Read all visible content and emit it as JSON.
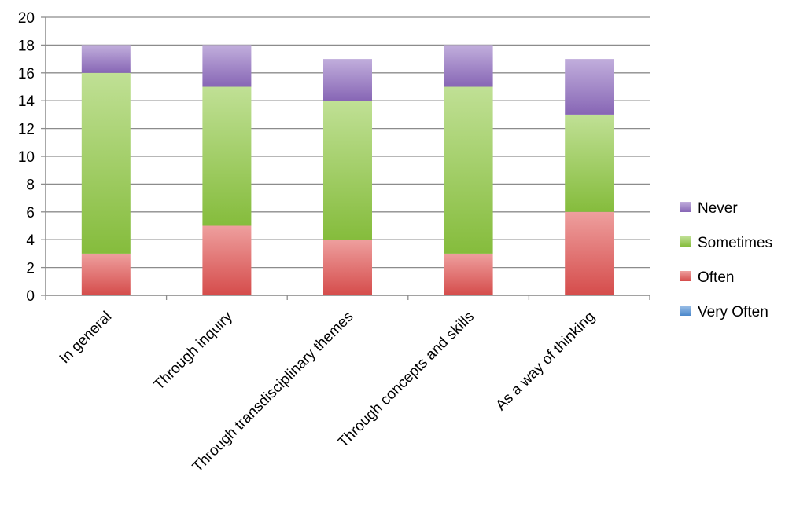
{
  "chart_data": {
    "type": "bar",
    "stacked": true,
    "categories": [
      "In general",
      "Through inquiry",
      "Through transdisciplinary themes",
      "Through concepts and skills",
      "As a way of thinking"
    ],
    "series": [
      {
        "name": "Very Often",
        "values": [
          0,
          0,
          0,
          0,
          0
        ],
        "color": "#4f8fd6"
      },
      {
        "name": "Often",
        "values": [
          3,
          5,
          4,
          3,
          6
        ],
        "color": "#e0504f"
      },
      {
        "name": "Sometimes",
        "values": [
          13,
          10,
          10,
          12,
          7
        ],
        "color": "#8cc63f"
      },
      {
        "name": "Never",
        "values": [
          2,
          3,
          3,
          3,
          4
        ],
        "color": "#8e6bbf"
      }
    ],
    "yticks": [
      "0",
      "2",
      "4",
      "6",
      "8",
      "10",
      "12",
      "14",
      "16",
      "18",
      "20"
    ],
    "ylim": [
      0,
      20
    ],
    "grid": true,
    "legend_position": "right",
    "legend_order": [
      "Never",
      "Sometimes",
      "Often",
      "Very Often"
    ]
  }
}
